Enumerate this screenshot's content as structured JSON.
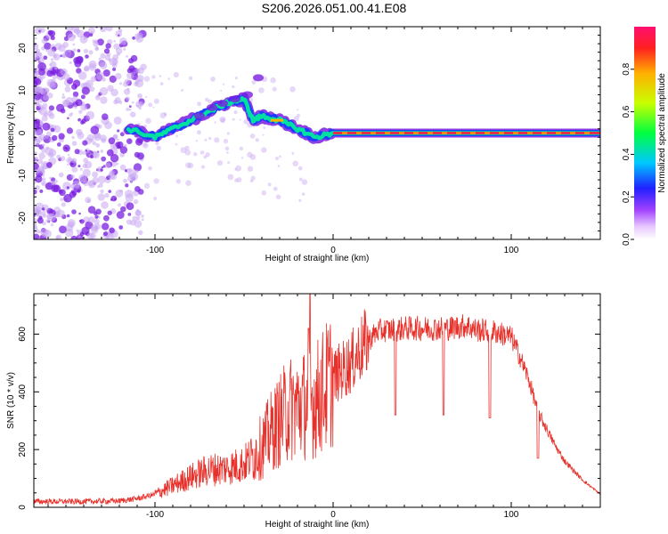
{
  "title": "S206.2026.051.00.41.E08",
  "colors": {
    "snr_line": "#e8302a",
    "spectral_blob": "#7a1fe0",
    "spectral_faint": "#c9a8f3",
    "track_core": "#e0304a",
    "track_edge": "#00e0a0"
  },
  "chart_data": [
    {
      "type": "heatmap",
      "xlabel": "Height of straight line (km)",
      "ylabel": "Frequency (Hz)",
      "xlim": [
        -168,
        150
      ],
      "ylim": [
        -25,
        25
      ],
      "xticks": [
        -100,
        0,
        100
      ],
      "yticks": [
        -20,
        -10,
        0,
        10,
        20
      ],
      "colorbar": {
        "label": "Normalized spectral amplitude",
        "range": [
          0.0,
          1.0
        ],
        "ticks": [
          "0.0",
          "0.2",
          "0.4",
          "0.6",
          "0.8"
        ],
        "colormap": "rainbow (violet → blue → cyan → green → yellow → orange → red)"
      },
      "track": {
        "description_points_x": [
          -115,
          -100,
          -90,
          -80,
          -70,
          -60,
          -50,
          -45,
          -40,
          -30,
          -20,
          -10,
          0,
          50,
          100,
          150
        ],
        "description_points_y": [
          1,
          -1,
          1,
          3,
          5,
          7,
          8,
          3,
          4,
          3,
          1,
          -1,
          0,
          0,
          0,
          0
        ]
      }
    },
    {
      "type": "line",
      "xlabel": "Height of straight line (km)",
      "ylabel": "SNR (10 * v/v)",
      "xlim": [
        -168,
        150
      ],
      "ylim": [
        0,
        740
      ],
      "xticks": [
        -100,
        0,
        100
      ],
      "yticks": [
        0,
        200,
        400,
        600
      ],
      "series": [
        {
          "x": [
            -168,
            -140,
            -120,
            -110,
            -100,
            -90,
            -80,
            -70,
            -60,
            -50,
            -40,
            -35,
            -30,
            -25,
            -20,
            -15,
            -10,
            -5,
            0,
            10,
            15,
            20,
            25,
            30,
            35,
            40,
            50,
            60,
            65,
            70,
            75,
            80,
            90,
            100,
            105,
            110,
            115,
            120,
            125,
            130,
            140,
            150
          ],
          "y": [
            20,
            20,
            22,
            30,
            45,
            75,
            105,
            130,
            135,
            150,
            210,
            260,
            300,
            340,
            350,
            360,
            370,
            410,
            450,
            500,
            545,
            580,
            610,
            615,
            615,
            620,
            620,
            620,
            620,
            625,
            630,
            615,
            610,
            590,
            520,
            440,
            330,
            270,
            210,
            160,
            95,
            45
          ]
        }
      ]
    }
  ]
}
